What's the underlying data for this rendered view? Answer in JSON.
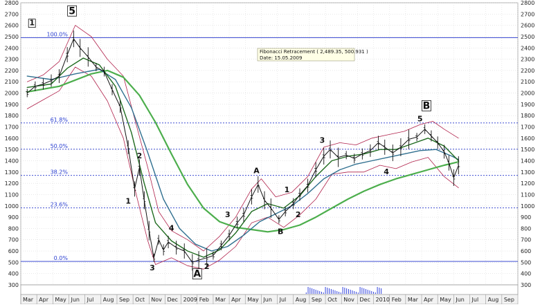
{
  "chart_data": {
    "type": "line",
    "x_axis": {
      "labels": [
        "Mar",
        "Apr",
        "May",
        "Jun",
        "Jul",
        "Aug",
        "Sep",
        "Oct",
        "Nov",
        "Dec",
        "2009",
        "Feb",
        "Mar",
        "Apr",
        "May",
        "Jun",
        "Jul",
        "Aug",
        "Sep",
        "Oct",
        "Nov",
        "Dec",
        "2010",
        "Feb",
        "Mar",
        "Apr",
        "May",
        "Jun",
        "Jul",
        "Aug",
        "Sep"
      ]
    },
    "y_axis": {
      "min": 300,
      "max": 2800,
      "ticks": [
        300,
        400,
        500,
        600,
        700,
        800,
        900,
        1000,
        1100,
        1200,
        1300,
        1400,
        1500,
        1600,
        1700,
        1800,
        1900,
        2000,
        2100,
        2200,
        2300,
        2400,
        2500,
        2600,
        2700,
        2800
      ],
      "left_ticks": [
        "300",
        "400",
        "500",
        "600",
        "700",
        "800",
        "900",
        "1000",
        "1100",
        "1200",
        "1300",
        "1400",
        "1500",
        "1600",
        "1700",
        "1800",
        "1900",
        "2000",
        "2100",
        "2200",
        "2300",
        "2400",
        "2500",
        "2600",
        "2700",
        "2800"
      ],
      "right_ticks": [
        "300",
        "400",
        "500",
        "600",
        "700",
        "800",
        "900",
        "1000",
        "1100",
        "1200",
        "1300",
        "1400",
        "1500",
        "1600",
        "1700",
        "1800",
        "1900",
        "2000",
        "2100",
        "2200",
        "2300",
        "2400",
        "2500",
        "2600",
        "2700",
        "2800"
      ]
    },
    "fibonacci": {
      "levels": [
        {
          "label": "100.0%",
          "value": 2490
        },
        {
          "label": "61.8%",
          "value": 1735
        },
        {
          "label": "50.0%",
          "value": 1502
        },
        {
          "label": "38.2%",
          "value": 1270
        },
        {
          "label": "23.6%",
          "value": 982
        },
        {
          "label": "0.0%",
          "value": 508
        }
      ],
      "tooltip_line1": "Fibonacci Retracement ( 2,489.35, 500.931 )",
      "tooltip_line2": "Date: 15.05.2009"
    },
    "price": [
      {
        "x": 0.0,
        "y": 2000
      },
      {
        "x": 0.5,
        "y": 2060
      },
      {
        "x": 1.0,
        "y": 2080
      },
      {
        "x": 1.5,
        "y": 2110
      },
      {
        "x": 2.0,
        "y": 2150
      },
      {
        "x": 2.5,
        "y": 2340
      },
      {
        "x": 2.9,
        "y": 2480
      },
      {
        "x": 3.3,
        "y": 2400
      },
      {
        "x": 3.8,
        "y": 2320
      },
      {
        "x": 4.3,
        "y": 2230
      },
      {
        "x": 4.8,
        "y": 2190
      },
      {
        "x": 5.3,
        "y": 2030
      },
      {
        "x": 5.8,
        "y": 1880
      },
      {
        "x": 6.3,
        "y": 1520
      },
      {
        "x": 6.7,
        "y": 1150
      },
      {
        "x": 7.0,
        "y": 1340
      },
      {
        "x": 7.3,
        "y": 1050
      },
      {
        "x": 7.6,
        "y": 780
      },
      {
        "x": 7.9,
        "y": 540
      },
      {
        "x": 8.2,
        "y": 700
      },
      {
        "x": 8.5,
        "y": 610
      },
      {
        "x": 8.8,
        "y": 680
      },
      {
        "x": 9.3,
        "y": 630
      },
      {
        "x": 9.8,
        "y": 600
      },
      {
        "x": 10.3,
        "y": 500
      },
      {
        "x": 10.7,
        "y": 520
      },
      {
        "x": 11.2,
        "y": 540
      },
      {
        "x": 11.6,
        "y": 560
      },
      {
        "x": 12.1,
        "y": 650
      },
      {
        "x": 12.6,
        "y": 740
      },
      {
        "x": 13.1,
        "y": 850
      },
      {
        "x": 13.5,
        "y": 920
      },
      {
        "x": 14.0,
        "y": 1080
      },
      {
        "x": 14.4,
        "y": 1190
      },
      {
        "x": 14.8,
        "y": 1050
      },
      {
        "x": 15.2,
        "y": 980
      },
      {
        "x": 15.7,
        "y": 880
      },
      {
        "x": 16.1,
        "y": 950
      },
      {
        "x": 16.6,
        "y": 1020
      },
      {
        "x": 17.0,
        "y": 1100
      },
      {
        "x": 17.5,
        "y": 1180
      },
      {
        "x": 18.0,
        "y": 1320
      },
      {
        "x": 18.5,
        "y": 1440
      },
      {
        "x": 18.9,
        "y": 1500
      },
      {
        "x": 19.4,
        "y": 1430
      },
      {
        "x": 19.9,
        "y": 1450
      },
      {
        "x": 20.4,
        "y": 1420
      },
      {
        "x": 20.9,
        "y": 1460
      },
      {
        "x": 21.4,
        "y": 1490
      },
      {
        "x": 21.9,
        "y": 1560
      },
      {
        "x": 22.3,
        "y": 1520
      },
      {
        "x": 22.8,
        "y": 1470
      },
      {
        "x": 23.3,
        "y": 1520
      },
      {
        "x": 23.8,
        "y": 1590
      },
      {
        "x": 24.3,
        "y": 1610
      },
      {
        "x": 24.8,
        "y": 1680
      },
      {
        "x": 25.2,
        "y": 1620
      },
      {
        "x": 25.6,
        "y": 1560
      },
      {
        "x": 26.0,
        "y": 1480
      },
      {
        "x": 26.3,
        "y": 1380
      },
      {
        "x": 26.6,
        "y": 1250
      },
      {
        "x": 26.9,
        "y": 1360
      }
    ],
    "ema_short": [
      {
        "x": 0.0,
        "y": 2050
      },
      {
        "x": 1.5,
        "y": 2080
      },
      {
        "x": 2.5,
        "y": 2220
      },
      {
        "x": 3.5,
        "y": 2310
      },
      {
        "x": 4.5,
        "y": 2250
      },
      {
        "x": 5.5,
        "y": 2060
      },
      {
        "x": 6.5,
        "y": 1650
      },
      {
        "x": 7.3,
        "y": 1200
      },
      {
        "x": 8.0,
        "y": 850
      },
      {
        "x": 9.0,
        "y": 690
      },
      {
        "x": 10.0,
        "y": 600
      },
      {
        "x": 11.0,
        "y": 545
      },
      {
        "x": 12.0,
        "y": 610
      },
      {
        "x": 13.0,
        "y": 760
      },
      {
        "x": 14.0,
        "y": 950
      },
      {
        "x": 15.0,
        "y": 1020
      },
      {
        "x": 16.0,
        "y": 980
      },
      {
        "x": 17.0,
        "y": 1090
      },
      {
        "x": 18.0,
        "y": 1260
      },
      {
        "x": 19.0,
        "y": 1400
      },
      {
        "x": 20.0,
        "y": 1440
      },
      {
        "x": 21.0,
        "y": 1460
      },
      {
        "x": 22.0,
        "y": 1500
      },
      {
        "x": 23.0,
        "y": 1500
      },
      {
        "x": 24.0,
        "y": 1550
      },
      {
        "x": 25.0,
        "y": 1600
      },
      {
        "x": 26.0,
        "y": 1530
      },
      {
        "x": 26.9,
        "y": 1400
      }
    ],
    "ema_mid": [
      {
        "x": 0.0,
        "y": 2150
      },
      {
        "x": 1.5,
        "y": 2120
      },
      {
        "x": 3.0,
        "y": 2170
      },
      {
        "x": 4.5,
        "y": 2210
      },
      {
        "x": 5.5,
        "y": 2120
      },
      {
        "x": 6.5,
        "y": 1870
      },
      {
        "x": 7.5,
        "y": 1480
      },
      {
        "x": 8.5,
        "y": 1060
      },
      {
        "x": 9.5,
        "y": 800
      },
      {
        "x": 10.5,
        "y": 660
      },
      {
        "x": 11.5,
        "y": 600
      },
      {
        "x": 12.5,
        "y": 640
      },
      {
        "x": 13.5,
        "y": 740
      },
      {
        "x": 14.5,
        "y": 860
      },
      {
        "x": 15.5,
        "y": 930
      },
      {
        "x": 16.5,
        "y": 1000
      },
      {
        "x": 17.5,
        "y": 1110
      },
      {
        "x": 18.5,
        "y": 1240
      },
      {
        "x": 19.5,
        "y": 1320
      },
      {
        "x": 20.5,
        "y": 1370
      },
      {
        "x": 21.5,
        "y": 1400
      },
      {
        "x": 22.5,
        "y": 1430
      },
      {
        "x": 23.5,
        "y": 1460
      },
      {
        "x": 24.5,
        "y": 1490
      },
      {
        "x": 25.5,
        "y": 1500
      },
      {
        "x": 26.5,
        "y": 1440
      },
      {
        "x": 26.9,
        "y": 1410
      }
    ],
    "ema_long": [
      {
        "x": 0.0,
        "y": 2010
      },
      {
        "x": 2.0,
        "y": 2060
      },
      {
        "x": 4.0,
        "y": 2170
      },
      {
        "x": 5.0,
        "y": 2200
      },
      {
        "x": 6.0,
        "y": 2140
      },
      {
        "x": 7.0,
        "y": 1980
      },
      {
        "x": 8.0,
        "y": 1740
      },
      {
        "x": 9.0,
        "y": 1460
      },
      {
        "x": 10.0,
        "y": 1190
      },
      {
        "x": 11.0,
        "y": 980
      },
      {
        "x": 12.0,
        "y": 860
      },
      {
        "x": 13.0,
        "y": 810
      },
      {
        "x": 14.0,
        "y": 790
      },
      {
        "x": 15.0,
        "y": 770
      },
      {
        "x": 16.0,
        "y": 790
      },
      {
        "x": 17.0,
        "y": 830
      },
      {
        "x": 18.0,
        "y": 900
      },
      {
        "x": 19.0,
        "y": 980
      },
      {
        "x": 20.0,
        "y": 1060
      },
      {
        "x": 21.0,
        "y": 1130
      },
      {
        "x": 22.0,
        "y": 1190
      },
      {
        "x": 23.0,
        "y": 1240
      },
      {
        "x": 24.0,
        "y": 1280
      },
      {
        "x": 25.0,
        "y": 1320
      },
      {
        "x": 26.0,
        "y": 1360
      },
      {
        "x": 26.9,
        "y": 1390
      }
    ],
    "envelope_upper": [
      {
        "x": 0.0,
        "y": 2100
      },
      {
        "x": 1.0,
        "y": 2160
      },
      {
        "x": 2.0,
        "y": 2280
      },
      {
        "x": 3.0,
        "y": 2600
      },
      {
        "x": 4.0,
        "y": 2500
      },
      {
        "x": 5.0,
        "y": 2300
      },
      {
        "x": 6.0,
        "y": 2150
      },
      {
        "x": 6.8,
        "y": 1720
      },
      {
        "x": 7.5,
        "y": 1350
      },
      {
        "x": 8.2,
        "y": 950
      },
      {
        "x": 9.0,
        "y": 780
      },
      {
        "x": 10.0,
        "y": 700
      },
      {
        "x": 11.0,
        "y": 600
      },
      {
        "x": 12.0,
        "y": 730
      },
      {
        "x": 13.0,
        "y": 900
      },
      {
        "x": 14.0,
        "y": 1150
      },
      {
        "x": 14.6,
        "y": 1240
      },
      {
        "x": 15.5,
        "y": 1080
      },
      {
        "x": 16.5,
        "y": 1120
      },
      {
        "x": 17.5,
        "y": 1260
      },
      {
        "x": 18.5,
        "y": 1520
      },
      {
        "x": 19.5,
        "y": 1560
      },
      {
        "x": 20.5,
        "y": 1540
      },
      {
        "x": 21.5,
        "y": 1600
      },
      {
        "x": 22.5,
        "y": 1630
      },
      {
        "x": 23.5,
        "y": 1660
      },
      {
        "x": 24.5,
        "y": 1720
      },
      {
        "x": 25.3,
        "y": 1750
      },
      {
        "x": 26.0,
        "y": 1680
      },
      {
        "x": 26.9,
        "y": 1600
      }
    ],
    "envelope_lower": [
      {
        "x": 0.0,
        "y": 1860
      },
      {
        "x": 1.0,
        "y": 1940
      },
      {
        "x": 2.0,
        "y": 2020
      },
      {
        "x": 3.0,
        "y": 2230
      },
      {
        "x": 4.0,
        "y": 2150
      },
      {
        "x": 5.0,
        "y": 1930
      },
      {
        "x": 6.0,
        "y": 1600
      },
      {
        "x": 6.8,
        "y": 1100
      },
      {
        "x": 7.5,
        "y": 700
      },
      {
        "x": 8.0,
        "y": 480
      },
      {
        "x": 9.0,
        "y": 540
      },
      {
        "x": 10.0,
        "y": 470
      },
      {
        "x": 11.0,
        "y": 440
      },
      {
        "x": 12.0,
        "y": 520
      },
      {
        "x": 13.0,
        "y": 640
      },
      {
        "x": 14.0,
        "y": 850
      },
      {
        "x": 15.0,
        "y": 900
      },
      {
        "x": 16.0,
        "y": 810
      },
      {
        "x": 17.0,
        "y": 920
      },
      {
        "x": 18.0,
        "y": 1060
      },
      {
        "x": 19.0,
        "y": 1280
      },
      {
        "x": 20.0,
        "y": 1300
      },
      {
        "x": 21.0,
        "y": 1300
      },
      {
        "x": 22.0,
        "y": 1360
      },
      {
        "x": 23.0,
        "y": 1330
      },
      {
        "x": 24.0,
        "y": 1390
      },
      {
        "x": 25.0,
        "y": 1430
      },
      {
        "x": 26.0,
        "y": 1260
      },
      {
        "x": 26.9,
        "y": 1160
      }
    ],
    "wave_labels": [
      {
        "text": "5",
        "x": 2.8,
        "y": 2700,
        "boxed": true,
        "big": true
      },
      {
        "text": "1",
        "x": 0.3,
        "y": 2600,
        "boxed": true,
        "big": false
      },
      {
        "text": "2",
        "x": 7.0,
        "y": 1420,
        "boxed": false,
        "big": false
      },
      {
        "text": "1",
        "x": 6.3,
        "y": 1020,
        "boxed": false,
        "big": false
      },
      {
        "text": "3",
        "x": 7.8,
        "y": 430,
        "boxed": false,
        "big": false
      },
      {
        "text": "4",
        "x": 9.0,
        "y": 780,
        "boxed": false,
        "big": false
      },
      {
        "text": "A",
        "x": 10.6,
        "y": 370,
        "boxed": true,
        "big": true
      },
      {
        "text": "2",
        "x": 11.2,
        "y": 440,
        "boxed": false,
        "big": false
      },
      {
        "text": "3",
        "x": 12.5,
        "y": 900,
        "boxed": false,
        "big": false
      },
      {
        "text": "A",
        "x": 14.3,
        "y": 1290,
        "boxed": false,
        "big": false
      },
      {
        "text": "1",
        "x": 16.2,
        "y": 1120,
        "boxed": false,
        "big": false
      },
      {
        "text": "B",
        "x": 15.8,
        "y": 750,
        "boxed": false,
        "big": false
      },
      {
        "text": "2",
        "x": 16.9,
        "y": 900,
        "boxed": false,
        "big": false
      },
      {
        "text": "3",
        "x": 18.4,
        "y": 1560,
        "boxed": false,
        "big": false
      },
      {
        "text": "4",
        "x": 22.4,
        "y": 1280,
        "boxed": false,
        "big": false
      },
      {
        "text": "5",
        "x": 24.5,
        "y": 1750,
        "boxed": false,
        "big": false
      },
      {
        "text": "B",
        "x": 24.9,
        "y": 1860,
        "boxed": true,
        "big": true
      }
    ],
    "grid": true
  }
}
